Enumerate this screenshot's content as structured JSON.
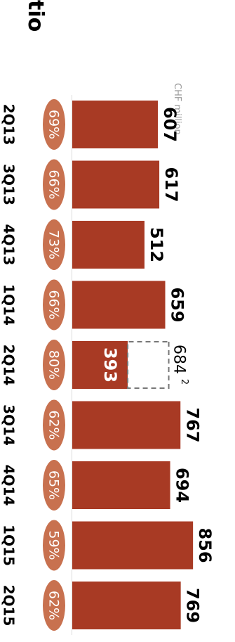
{
  "chart_data": {
    "type": "bar",
    "title": "tio",
    "unit_label": "CHF million",
    "categories": [
      "2Q13",
      "3Q13",
      "4Q13",
      "1Q14",
      "2Q14",
      "3Q14",
      "4Q14",
      "1Q15",
      "2Q15"
    ],
    "values": [
      607,
      617,
      512,
      659,
      393,
      767,
      694,
      856,
      769
    ],
    "value_labels": [
      "607",
      "617",
      "512",
      "659",
      "393",
      "767",
      "694",
      "856",
      "769"
    ],
    "ratios": [
      "69%",
      "66%",
      "73%",
      "66%",
      "80%",
      "62%",
      "65%",
      "59%",
      "62%"
    ],
    "adjusted": {
      "category": "2Q14",
      "value": 684,
      "label": "684",
      "footnote": "2"
    },
    "xlim": [
      0,
      900
    ],
    "colors": {
      "bar": "#A83A24",
      "ratio_oval": "#C8714F",
      "adjusted_outline": "#777777"
    }
  }
}
